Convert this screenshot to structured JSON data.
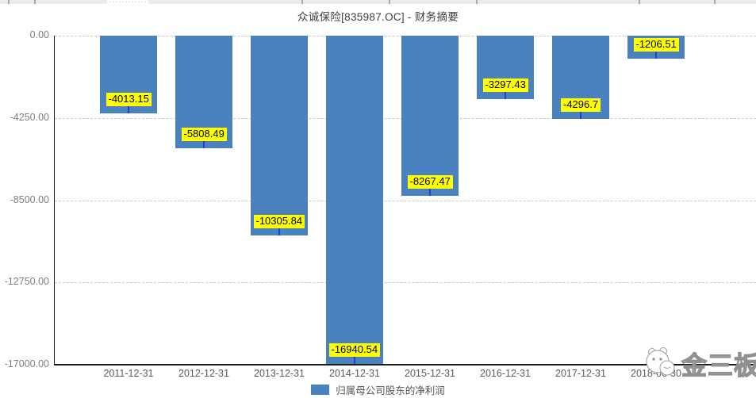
{
  "header": {
    "title": "众诚保险[835987.OC] - 财务摘要"
  },
  "chart_data": {
    "type": "bar",
    "title": "众诚保险[835987.OC] - 财务摘要",
    "categories": [
      "2011-12-31",
      "2012-12-31",
      "2013-12-31",
      "2014-12-31",
      "2015-12-31",
      "2016-12-31",
      "2017-12-31",
      "2018-06-30"
    ],
    "series": [
      {
        "name": "归属母公司股东的净利润",
        "values": [
          -4013.15,
          -5808.49,
          -10305.84,
          -16940.54,
          -8267.47,
          -3297.43,
          -4296.7,
          -1206.51
        ]
      }
    ],
    "data_labels": [
      "-4013.15",
      "-5808.49",
      "-10305.84",
      "-16940.54",
      "-8267.47",
      "-3297.43",
      "-4296.7",
      "-1206.51"
    ],
    "y_ticks": [
      "0.00",
      "-4250.00",
      "-8500.00",
      "-12750.00",
      "-17000.00"
    ],
    "ylim": [
      -17000,
      0
    ],
    "xlabel": "",
    "ylabel": "",
    "grid": true,
    "legend_position": "bottom",
    "colors": {
      "bar": "#4a82c0",
      "data_label_bg": "#ffff00",
      "data_label_text": "#000000",
      "data_label_tick": "#2b3ad4",
      "gridline": "#c9c9c9",
      "axis": "#1a1a1a"
    }
  },
  "legend": {
    "label": "归属母公司股东的净利润",
    "swatch_color": "#4a82c0"
  },
  "watermark": {
    "text": "金三板",
    "mascot": "mascot-face-icon"
  }
}
